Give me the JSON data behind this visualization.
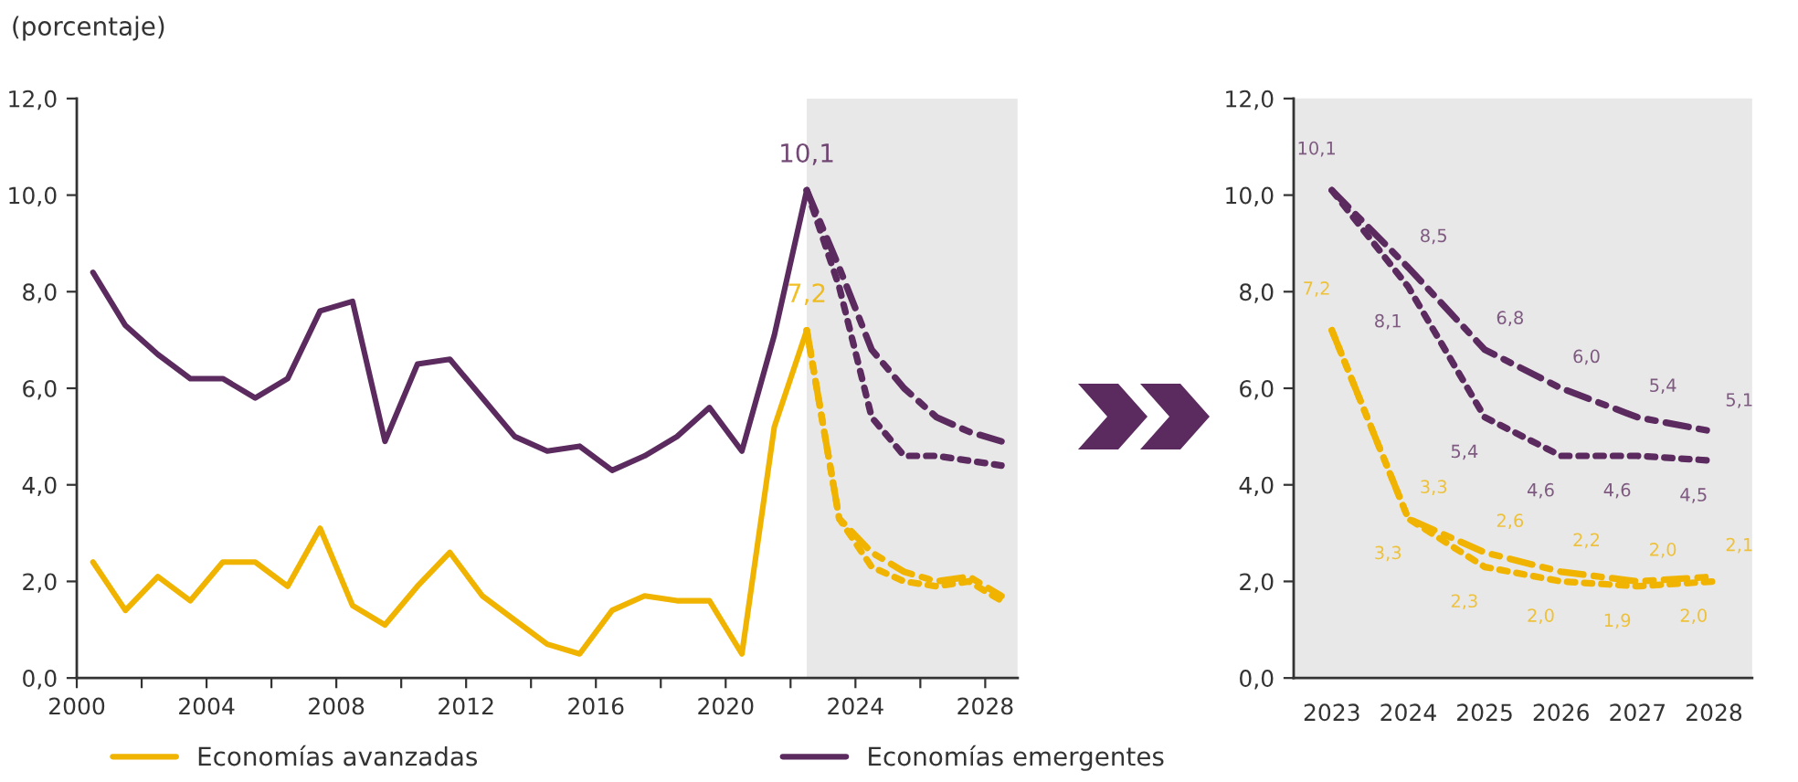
{
  "chart_data": [
    {
      "type": "line",
      "ylabel": "(porcentaje)",
      "x": [
        2000.5,
        2001.5,
        2002.5,
        2003.5,
        2004.5,
        2005.5,
        2006.5,
        2007.5,
        2008.5,
        2009.5,
        2010.5,
        2011.5,
        2012.5,
        2013.5,
        2014.5,
        2015.5,
        2016.5,
        2017.5,
        2018.5,
        2019.5,
        2020.5,
        2021.5,
        2022.5
      ],
      "series": [
        {
          "name": "Economías avanzadas",
          "color": "#f0b400",
          "line_style": "solid",
          "values": [
            2.4,
            1.4,
            2.1,
            1.6,
            2.4,
            2.4,
            1.9,
            3.1,
            1.5,
            1.1,
            1.9,
            2.6,
            1.7,
            1.2,
            0.7,
            0.5,
            1.4,
            1.7,
            1.6,
            1.6,
            0.5,
            5.2,
            7.2
          ]
        },
        {
          "name": "Economías emergentes",
          "color": "#5b2a5e",
          "line_style": "solid",
          "values": [
            8.4,
            7.3,
            6.7,
            6.2,
            6.2,
            5.8,
            6.2,
            7.6,
            7.8,
            4.9,
            6.5,
            6.6,
            5.8,
            5.0,
            4.7,
            4.8,
            4.3,
            4.6,
            5.0,
            5.6,
            4.7,
            7.1,
            10.1
          ]
        },
        {
          "color": "#5b2a5e",
          "line_style": "dashed",
          "x": [
            2022.5,
            2023.5,
            2024.5,
            2025.5,
            2026.5,
            2027.5,
            2028.5
          ],
          "values": [
            10.1,
            8.5,
            6.8,
            6.0,
            5.4,
            5.1,
            4.9
          ]
        },
        {
          "color": "#5b2a5e",
          "line_style": "dotted",
          "x": [
            2022.5,
            2023.5,
            2024.5,
            2025.5,
            2026.5,
            2027.5,
            2028.5
          ],
          "values": [
            10.1,
            8.1,
            5.4,
            4.6,
            4.6,
            4.5,
            4.4
          ]
        },
        {
          "color": "#f0b400",
          "line_style": "dashed",
          "x": [
            2022.5,
            2023.5,
            2024.5,
            2025.5,
            2026.5,
            2027.5,
            2028.5
          ],
          "values": [
            7.2,
            3.3,
            2.6,
            2.2,
            2.0,
            2.1,
            1.7
          ]
        },
        {
          "color": "#f0b400",
          "line_style": "dotted",
          "x": [
            2022.5,
            2023.5,
            2024.5,
            2025.5,
            2026.5,
            2027.5,
            2028.5
          ],
          "values": [
            7.2,
            3.3,
            2.3,
            2.0,
            1.9,
            2.0,
            1.6
          ]
        }
      ],
      "annotations": [
        {
          "text": "10,1",
          "x": 2022.5,
          "y": 10.1
        },
        {
          "text": "7,2",
          "x": 2022.5,
          "y": 7.2
        }
      ],
      "bands": [
        {
          "axis": "x",
          "from": 2022.5,
          "to": 2029,
          "color": "#e8e8e8"
        }
      ],
      "xlim": [
        2000,
        2029
      ],
      "xticks": [
        2000,
        {
          "value": 2002,
          "label": null
        },
        2004,
        {
          "value": 2006,
          "label": null
        },
        2008,
        {
          "value": 2010,
          "label": null
        },
        2012,
        {
          "value": 2014,
          "label": null
        },
        2016,
        {
          "value": 2018,
          "label": null
        },
        2020,
        {
          "value": 2022,
          "label": null
        },
        2024,
        {
          "value": 2026,
          "label": null
        },
        2028
      ],
      "ylim": [
        0,
        12
      ],
      "yticks": [
        {
          "value": 0,
          "label": "0,0"
        },
        {
          "value": 2,
          "label": "2,0"
        },
        {
          "value": 4,
          "label": "4,0"
        },
        {
          "value": 6,
          "label": "6,0"
        },
        {
          "value": 8,
          "label": "8,0"
        },
        {
          "value": 10,
          "label": "10,0"
        },
        {
          "value": 12,
          "label": "12,0"
        }
      ],
      "grid": false,
      "legend": "bottom"
    },
    {
      "type": "line",
      "categories": [
        "2023",
        "2024",
        "2025",
        "2026",
        "2027",
        "2028"
      ],
      "series": [
        {
          "color": "#5b2a5e",
          "line_style": "dashed",
          "values": [
            10.1,
            8.5,
            6.8,
            6.0,
            5.4,
            5.1
          ],
          "value_labels": [
            "10,1",
            "8,5",
            "6,8",
            "6,0",
            "5,4",
            "5,1"
          ]
        },
        {
          "color": "#5b2a5e",
          "line_style": "dotted",
          "values": [
            10.1,
            8.1,
            5.4,
            4.6,
            4.6,
            4.5
          ],
          "value_labels": [
            null,
            "8,1",
            "5,4",
            "4,6",
            "4,6",
            "4,5"
          ]
        },
        {
          "color": "#f0b400",
          "line_style": "dashed",
          "values": [
            7.2,
            3.3,
            2.6,
            2.2,
            2.0,
            2.1
          ],
          "value_labels": [
            "7,2",
            "3,3",
            "2,6",
            "2,2",
            "2,0",
            "2,1"
          ]
        },
        {
          "color": "#f0b400",
          "line_style": "dotted",
          "values": [
            7.2,
            3.3,
            2.3,
            2.0,
            1.9,
            2.0
          ],
          "value_labels": [
            null,
            "3,3",
            "2,3",
            "2,0",
            "1,9",
            "2,0"
          ]
        }
      ],
      "ylim": [
        0,
        12
      ],
      "yticks": [
        {
          "value": 0,
          "label": "0,0"
        },
        {
          "value": 2,
          "label": "2,0"
        },
        {
          "value": 4,
          "label": "4,0"
        },
        {
          "value": 6,
          "label": "6,0"
        },
        {
          "value": 8,
          "label": "8,0"
        },
        {
          "value": 10,
          "label": "10,0"
        },
        {
          "value": 12,
          "label": "12,0"
        }
      ],
      "grid": false
    }
  ]
}
